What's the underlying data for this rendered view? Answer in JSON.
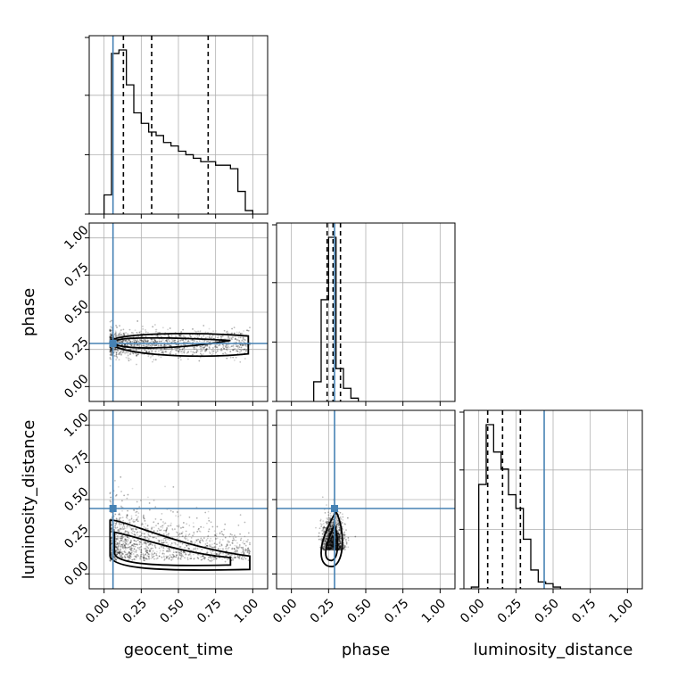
{
  "chart_data": {
    "type": "corner",
    "parameters": [
      "geocent_time",
      "phase",
      "luminosity_distance"
    ],
    "axis_labels": {
      "x": [
        "geocent_time",
        "phase",
        "luminosity_distance"
      ],
      "y": [
        "phase",
        "luminosity_distance"
      ]
    },
    "tick_labels": [
      "0.00",
      "0.25",
      "0.50",
      "0.75",
      "1.00"
    ],
    "range": [
      -0.1,
      1.1
    ],
    "grid": true,
    "truths": {
      "geocent_time": 0.06,
      "phase": 0.29,
      "luminosity_distance": 0.44
    },
    "truth_color": "#4682b4",
    "histograms": [
      {
        "parameter": "geocent_time",
        "bin_edges": [
          0.0,
          0.05,
          0.1,
          0.15,
          0.2,
          0.25,
          0.3,
          0.35,
          0.4,
          0.45,
          0.5,
          0.55,
          0.6,
          0.65,
          0.7,
          0.75,
          0.8,
          0.85,
          0.9,
          0.95,
          1.0
        ],
        "counts": [
          0.11,
          0.92,
          0.94,
          0.74,
          0.58,
          0.52,
          0.47,
          0.45,
          0.41,
          0.39,
          0.36,
          0.34,
          0.32,
          0.3,
          0.3,
          0.28,
          0.28,
          0.26,
          0.13,
          0.02
        ],
        "quantiles": [
          0.13,
          0.32,
          0.7
        ]
      },
      {
        "parameter": "phase",
        "bin_edges": [
          0.15,
          0.2,
          0.25,
          0.3,
          0.35,
          0.4,
          0.45
        ],
        "counts": [
          0.12,
          0.62,
          1.0,
          0.2,
          0.08,
          0.02
        ],
        "quantiles": [
          0.24,
          0.28,
          0.33
        ]
      },
      {
        "parameter": "luminosity_distance",
        "bin_edges": [
          -0.05,
          0.0,
          0.05,
          0.1,
          0.15,
          0.2,
          0.25,
          0.3,
          0.35,
          0.4,
          0.45,
          0.5,
          0.55
        ],
        "counts": [
          0.01,
          0.61,
          0.96,
          0.8,
          0.7,
          0.55,
          0.47,
          0.29,
          0.11,
          0.04,
          0.03,
          0.01
        ],
        "quantiles": [
          0.06,
          0.16,
          0.28
        ]
      }
    ],
    "pairs": [
      {
        "x": "geocent_time",
        "y": "phase",
        "center": [
          0.1,
          0.28
        ],
        "spread": [
          0.9,
          0.05
        ]
      },
      {
        "x": "geocent_time",
        "y": "luminosity_distance",
        "center": [
          0.12,
          0.2
        ],
        "spread": [
          0.8,
          0.12
        ]
      },
      {
        "x": "phase",
        "y": "luminosity_distance",
        "center": [
          0.25,
          0.2
        ],
        "spread": [
          0.06,
          0.12
        ]
      }
    ]
  }
}
